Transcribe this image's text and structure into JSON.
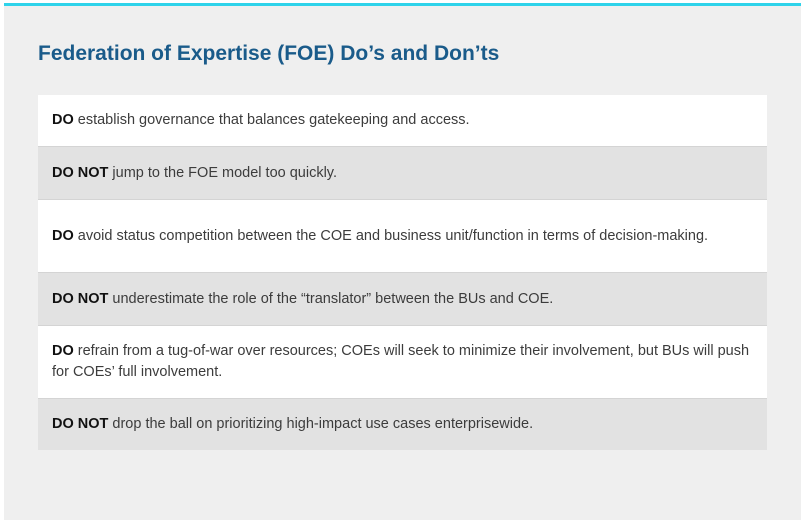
{
  "title": "Federation of Expertise (FOE) Do’s and Don’ts",
  "items": [
    {
      "keyword": "DO",
      "text": " establish governance that balances gatekeeping and access."
    },
    {
      "keyword": "DO NOT",
      "text": " jump to the FOE model too quickly."
    },
    {
      "keyword": "DO",
      "text": " avoid status competition between the COE and business unit/function in terms of decision-making."
    },
    {
      "keyword": "DO NOT",
      "text": " underestimate the role of the “translator” between the BUs and COE."
    },
    {
      "keyword": "DO",
      "text": " refrain from a tug-of-war over resources; COEs will seek to minimize their involvement, but BUs will push for COEs’ full involvement."
    },
    {
      "keyword": "DO NOT",
      "text": " drop the ball on prioritizing high-impact use cases enterprisewide."
    }
  ],
  "colors": {
    "accent_bar": "#2ed3ea",
    "title": "#1a5b8a",
    "panel_bg": "#efefef",
    "do_row_bg": "#ffffff",
    "dont_row_bg": "#e2e2e2"
  }
}
